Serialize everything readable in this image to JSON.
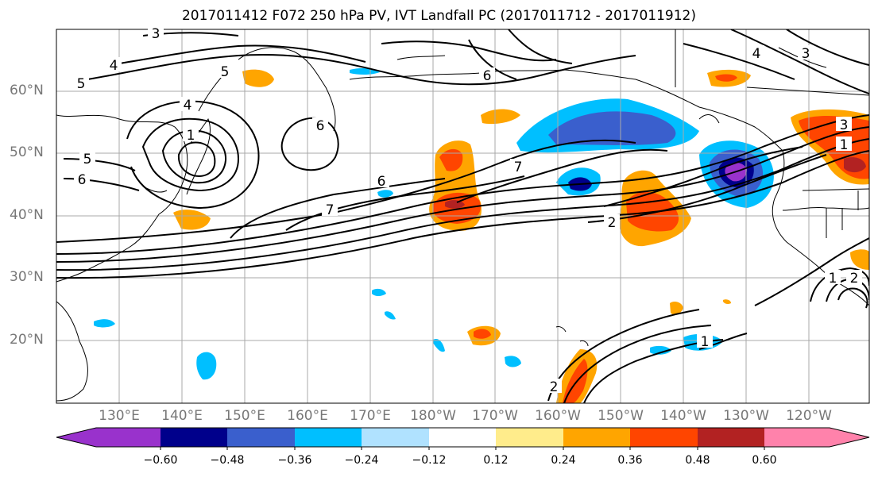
{
  "title": "2017011412 F072 250 hPa PV, IVT Landfall PC (2017011712 - 2017011912)",
  "lat_labels": [
    "60°N",
    "50°N",
    "40°N",
    "30°N",
    "20°N"
  ],
  "lon_labels": [
    "130°E",
    "140°E",
    "150°E",
    "160°E",
    "170°E",
    "180°W",
    "170°W",
    "160°W",
    "150°W",
    "140°W",
    "130°W",
    "120°W"
  ],
  "colorbar": {
    "ticks": [
      "−0.60",
      "−0.48",
      "−0.36",
      "−0.24",
      "−0.12",
      "0.12",
      "0.24",
      "0.36",
      "0.48",
      "0.60"
    ],
    "colors": [
      "#9932cc",
      "#00008b",
      "#3a5fcd",
      "#00bfff",
      "#b0e2ff",
      "#ffffff",
      "#ffec8b",
      "#ffa500",
      "#ff4500",
      "#b22222",
      "#ff82ab"
    ]
  },
  "contour_labels": [
    "3",
    "4",
    "5",
    "5",
    "6",
    "4",
    "1",
    "6",
    "6",
    "7",
    "7",
    "2",
    "4",
    "3",
    "3",
    "1",
    "1",
    "2",
    "1",
    "2",
    "5",
    "6"
  ]
}
